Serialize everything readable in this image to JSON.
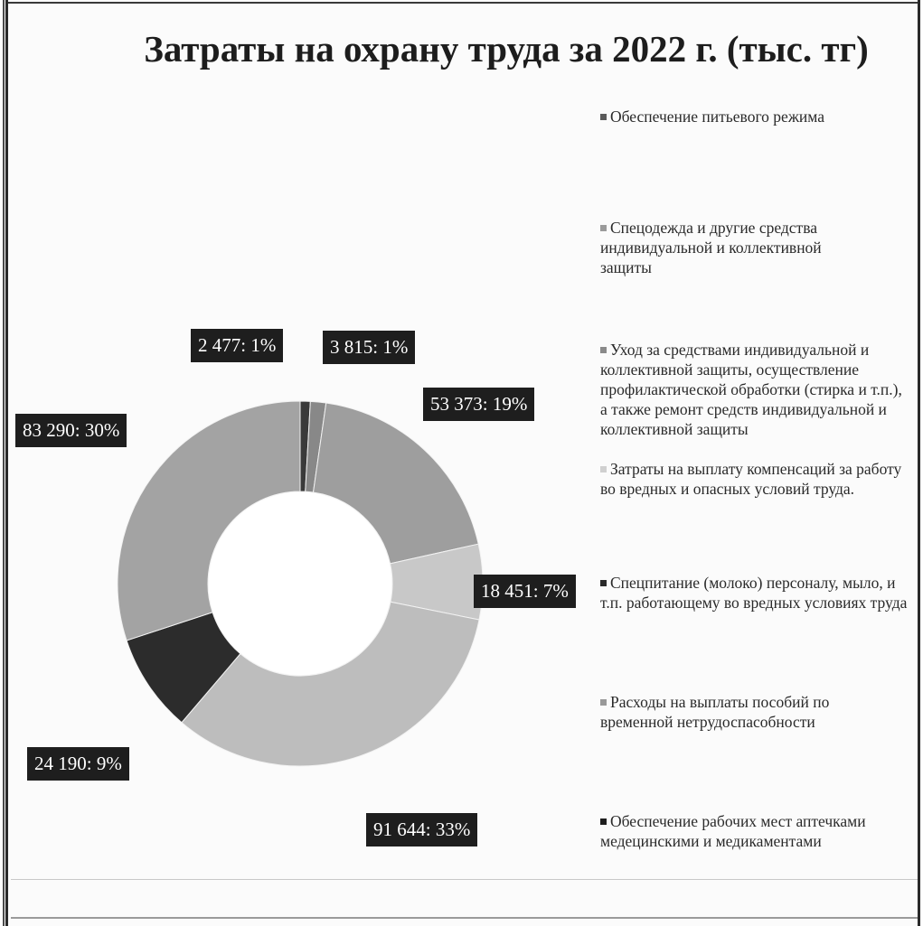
{
  "chart_data": {
    "type": "pie",
    "title": "Затраты на охрану труда за 2022 г. (тыс. тг)",
    "donut": true,
    "legend_position": "right",
    "slices": [
      {
        "name": "Обеспечение питьевого режима",
        "value": 2477,
        "label": "2 477: 1%",
        "color": "#3a3a3a"
      },
      {
        "name": "Спецодежда и другие средства индивидуальной и коллективной защиты",
        "value": 3815,
        "label": "3 815: 1%",
        "color": "#888888"
      },
      {
        "name": "Уход за средствами индивидуальной и коллективной защиты, осуществление профилактической обработки (стирка и т.п.), а также ремонт средств индивидуальной и коллективной защиты",
        "value": 53373,
        "label": "53 373: 19%",
        "color": "#9e9e9e"
      },
      {
        "name": "Затраты на выплату компенсаций за работу во вредных и опасных условий труда.",
        "value": 18451,
        "label": "18 451: 7%",
        "color": "#c8c8c8"
      },
      {
        "name": "Спецпитание (молоко) персоналу, мыло, и т.п. работающему во вредных условиях труда",
        "value": 91644,
        "label": "91 644: 33%",
        "color": "#bdbdbd"
      },
      {
        "name": "Расходы на выплаты пособий по временной нетрудоспасобности",
        "value": 24190,
        "label": "24 190: 9%",
        "color": "#2c2c2c"
      },
      {
        "name": "Обеспечение рабочих мест аптечками медецинскими и медикаментами",
        "value": 83290,
        "label": "83 290: 30%",
        "color": "#a3a3a3"
      }
    ],
    "legend": [
      {
        "text": "Обеспечение питьевого режима",
        "marker_color": "#5a5a5a"
      },
      {
        "text": "Спецодежда и другие средства индивидуальной и коллективной защиты",
        "marker_color": "#9a9a9a"
      },
      {
        "text": "Уход за средствами индивидуальной и коллективной защиты, осуществление профилактической обработки (стирка и т.п.), а также ремонт средств индивидуальной и коллективной защиты",
        "marker_color": "#8a8a8a"
      },
      {
        "text": "Затраты на выплату компенсаций за работу во вредных и опасных условий труда.",
        "marker_color": "#d0d0d0"
      },
      {
        "text": "Спецпитание (молоко) персоналу, мыло, и т.п. работающему во вредных условиях труда",
        "marker_color": "#2a2a2a"
      },
      {
        "text": "Расходы на выплаты пособий по временной нетрудоспасобности",
        "marker_color": "#999999"
      },
      {
        "text": "Обеспечение рабочих мест аптечками медецинскими и медикаментами",
        "marker_color": "#1e1e1e"
      }
    ]
  }
}
